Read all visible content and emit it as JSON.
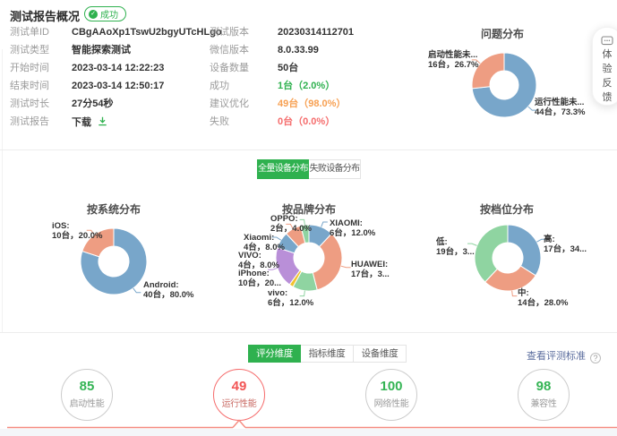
{
  "header": {
    "title": "测试报告概况",
    "badge": "成功"
  },
  "info_left": [
    {
      "label": "测试单ID",
      "value": "CBgAAoXp1TswU2bgyUTcHLgo"
    },
    {
      "label": "测试类型",
      "value": "智能探索测试"
    },
    {
      "label": "开始时间",
      "value": "2023-03-14 12:22:23"
    },
    {
      "label": "结束时间",
      "value": "2023-03-14 12:50:17"
    },
    {
      "label": "测试时长",
      "value": "27分54秒"
    },
    {
      "label": "测试报告",
      "value": "下载"
    }
  ],
  "info_right": [
    {
      "label": "测试版本",
      "value": "20230314112701",
      "tone": "normal"
    },
    {
      "label": "微信版本",
      "value": "8.0.33.99",
      "tone": "normal"
    },
    {
      "label": "设备数量",
      "value": "50台",
      "tone": "normal"
    },
    {
      "label": "成功",
      "value": "1台（2.0%）",
      "tone": "success"
    },
    {
      "label": "建议优化",
      "value": "49台（98.0%）",
      "tone": "warn"
    },
    {
      "label": "失败",
      "value": "0台（0.0%）",
      "tone": "error"
    }
  ],
  "device_tabs": [
    {
      "label": "全量设备分布",
      "active": true
    },
    {
      "label": "失败设备分布",
      "active": false
    }
  ],
  "dimension_tabs": [
    {
      "label": "评分维度",
      "active": true
    },
    {
      "label": "指标维度",
      "active": false
    },
    {
      "label": "设备维度",
      "active": false
    }
  ],
  "standard_link": "查看评测标准",
  "feedback": {
    "chars": [
      "体",
      "验",
      "反",
      "馈"
    ],
    "icon": "comment-icon"
  },
  "scores": [
    {
      "value": "85",
      "label": "启动性能",
      "state": "normal"
    },
    {
      "value": "49",
      "label": "运行性能",
      "state": "bad"
    },
    {
      "value": "100",
      "label": "网络性能",
      "state": "normal"
    },
    {
      "value": "98",
      "label": "兼容性",
      "state": "normal"
    }
  ],
  "colors": {
    "accent_green": "#2fb14f",
    "warn_orange": "#f7a052",
    "error_red": "#f56c6c",
    "link_blue": "#5b6d9e",
    "score_red_line": "#f58b80",
    "pie_blue": "#78a6ca",
    "pie_salmon": "#ee9d82",
    "pie_green": "#8fd4a1",
    "pie_yellow": "#f2c32e",
    "pie_purple": "#b98fd8"
  },
  "chart_data": [
    {
      "type": "pie",
      "title": "问题分布",
      "slices": [
        {
          "name": "运行性能未...",
          "value": 44,
          "pct": 73.3,
          "color": "#78a6ca",
          "label_name": "运行性能未...",
          "label_value": "44台，73.3%"
        },
        {
          "name": "启动性能未...",
          "value": 16,
          "pct": 26.7,
          "color": "#ee9d82",
          "label_name": "启动性能未...",
          "label_value": "16台，26.7%"
        }
      ]
    },
    {
      "type": "pie",
      "title": "按系统分布",
      "slices": [
        {
          "name": "Android",
          "value": 40,
          "pct": 80.0,
          "color": "#78a6ca",
          "label_name": "Android:",
          "label_value": "40台，80.0%"
        },
        {
          "name": "iOS",
          "value": 10,
          "pct": 20.0,
          "color": "#ee9d82",
          "label_name": "iOS:",
          "label_value": "10台，20.0%"
        }
      ]
    },
    {
      "type": "pie",
      "title": "按品牌分布",
      "slices": [
        {
          "name": "XIAOMI",
          "value": 6,
          "pct": 12.0,
          "color": "#78a6ca",
          "label_name": "XIAOMI:",
          "label_value": "6台，12.0%"
        },
        {
          "name": "HUAWEI",
          "value": 17,
          "pct": 34.0,
          "color": "#ee9d82",
          "label_name": "HUAWEI:",
          "label_value": "17台，3..."
        },
        {
          "name": "vivo",
          "value": 6,
          "pct": 12.0,
          "color": "#8fd4a1",
          "label_name": "vivo:",
          "label_value": "6台，12.0%"
        },
        {
          "name": "",
          "value": 1,
          "pct": 2.0,
          "color": "#f2c32e",
          "label_name": "",
          "label_value": ""
        },
        {
          "name": "iPhone",
          "value": 10,
          "pct": 20.0,
          "color": "#b98fd8",
          "label_name": "iPhone:",
          "label_value": "10台，20..."
        },
        {
          "name": "VIVO",
          "value": 4,
          "pct": 8.0,
          "color": "#78a6ca",
          "label_name": "VIVO:",
          "label_value": "4台，8.0%"
        },
        {
          "name": "Xiaomi",
          "value": 4,
          "pct": 8.0,
          "color": "#ee9d82",
          "label_name": "Xiaomi:",
          "label_value": "4台，8.0%"
        },
        {
          "name": "OPPO",
          "value": 2,
          "pct": 4.0,
          "color": "#8fd4a1",
          "label_name": "OPPO:",
          "label_value": "2台，4.0%"
        }
      ]
    },
    {
      "type": "pie",
      "title": "按档位分布",
      "slices": [
        {
          "name": "高",
          "value": 17,
          "pct": 34.0,
          "color": "#78a6ca",
          "label_name": "高:",
          "label_value": "17台，34..."
        },
        {
          "name": "中",
          "value": 14,
          "pct": 28.0,
          "color": "#ee9d82",
          "label_name": "中:",
          "label_value": "14台，28.0%"
        },
        {
          "name": "低",
          "value": 19,
          "pct": 38.0,
          "color": "#8fd4a1",
          "label_name": "低:",
          "label_value": "19台，3..."
        }
      ]
    }
  ]
}
